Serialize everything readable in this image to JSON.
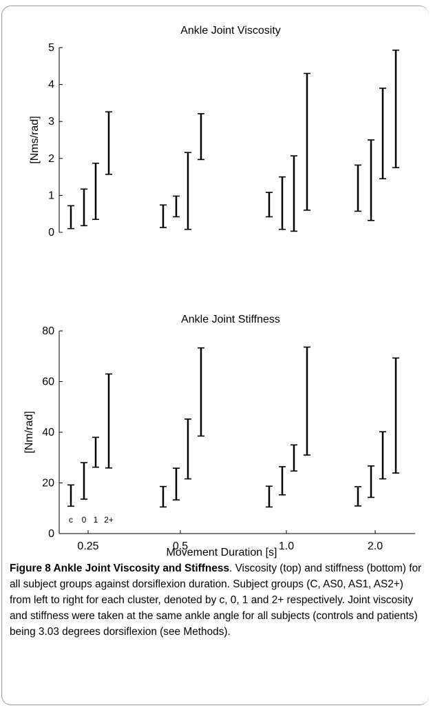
{
  "charts": [
    {
      "type": "errorbar",
      "title": "Ankle Joint Viscosity",
      "ylabel": "[Nms/rad]",
      "xlabel": "",
      "ylim": [
        0,
        5
      ],
      "yticks": [
        0,
        1,
        2,
        3,
        4,
        5
      ],
      "categories": [
        "0.25",
        "0.5",
        "1.0",
        "2.0"
      ],
      "show_xtick_labels": false,
      "series": [
        {
          "group": "c",
          "ranges": [
            [
              0.1,
              0.72
            ],
            [
              0.13,
              0.74
            ],
            [
              0.42,
              1.08
            ],
            [
              0.57,
              1.82
            ]
          ]
        },
        {
          "group": "0",
          "ranges": [
            [
              0.18,
              1.17
            ],
            [
              0.42,
              0.98
            ],
            [
              0.08,
              1.5
            ],
            [
              0.32,
              2.5
            ]
          ]
        },
        {
          "group": "1",
          "ranges": [
            [
              0.35,
              1.87
            ],
            [
              0.08,
              2.16
            ],
            [
              0.03,
              2.07
            ],
            [
              1.45,
              3.9
            ]
          ]
        },
        {
          "group": "2+",
          "ranges": [
            [
              1.57,
              3.26
            ],
            [
              1.97,
              3.21
            ],
            [
              0.6,
              4.3
            ],
            [
              1.75,
              4.93
            ]
          ]
        }
      ]
    },
    {
      "type": "errorbar",
      "title": "Ankle Joint Stiffness",
      "ylabel": "[Nm/rad]",
      "xlabel": "Movement Duration [s]",
      "ylim": [
        0,
        80
      ],
      "yticks": [
        0,
        20,
        40,
        60,
        80
      ],
      "categories": [
        "0.25",
        "0.5",
        "1.0",
        "2.0"
      ],
      "show_xtick_labels": true,
      "group_labels": [
        "c",
        "0",
        "1",
        "2+"
      ],
      "series": [
        {
          "group": "c",
          "ranges": [
            [
              10.8,
              19.2
            ],
            [
              10.5,
              18.6
            ],
            [
              10.5,
              18.7
            ],
            [
              10.9,
              18.5
            ]
          ]
        },
        {
          "group": "0",
          "ranges": [
            [
              13.6,
              28.0
            ],
            [
              13.3,
              25.8
            ],
            [
              15.3,
              26.4
            ],
            [
              14.3,
              26.7
            ]
          ]
        },
        {
          "group": "1",
          "ranges": [
            [
              26.2,
              38.0
            ],
            [
              21.6,
              45.2
            ],
            [
              24.7,
              35.0
            ],
            [
              21.6,
              40.2
            ]
          ]
        },
        {
          "group": "2+",
          "ranges": [
            [
              25.9,
              63.0
            ],
            [
              38.5,
              73.3
            ],
            [
              31.0,
              73.6
            ],
            [
              23.9,
              69.3
            ]
          ]
        }
      ]
    }
  ],
  "caption": {
    "title": "Figure 8 Ankle Joint Viscosity and Stiffness",
    "text": ". Viscosity (top) and stiffness (bottom) for all subject groups against dorsiflexion duration. Subject groups (C, AS0, AS1, AS2+) from left to right for each cluster, denoted by c, 0, 1 and 2+ respectively. Joint viscosity and stiffness were taken at the same ankle angle for all subjects (controls and patients) being 3.03 degrees dorsiflexion (see Methods)."
  }
}
